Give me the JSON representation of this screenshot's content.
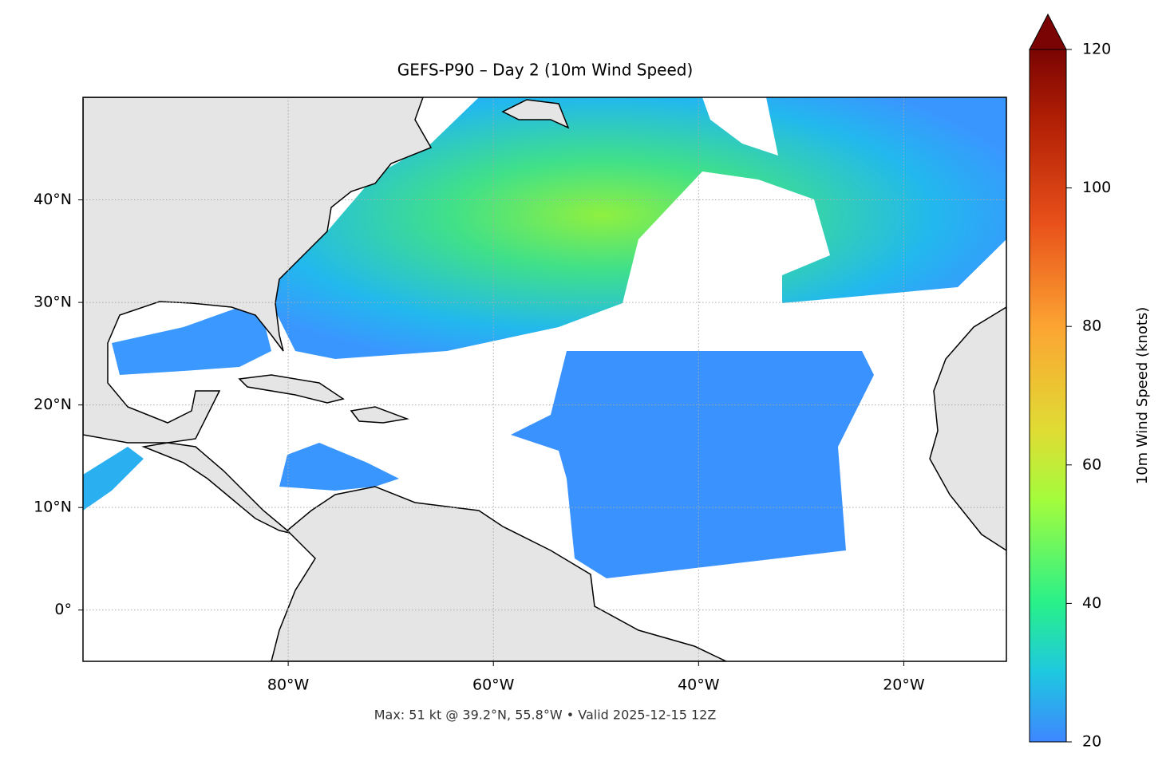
{
  "chart_data": {
    "type": "map",
    "title": "GEFS-P90 – Day 2 (10m Wind Speed)",
    "footer": "Max: 51 kt @ 39.2°N, 55.8°W • Valid 2025-12-15 12Z",
    "xlim": [
      -100,
      -10
    ],
    "ylim": [
      -5,
      50
    ],
    "xticks": [
      {
        "value": -80,
        "label": "80°W"
      },
      {
        "value": -60,
        "label": "60°W"
      },
      {
        "value": -40,
        "label": "40°W"
      },
      {
        "value": -20,
        "label": "20°W"
      }
    ],
    "yticks": [
      {
        "value": 0,
        "label": "0°"
      },
      {
        "value": 10,
        "label": "10°N"
      },
      {
        "value": 20,
        "label": "20°N"
      },
      {
        "value": 30,
        "label": "30°N"
      },
      {
        "value": 40,
        "label": "40°N"
      }
    ],
    "grid": true,
    "colorbar": {
      "label": "10m Wind Speed (knots)",
      "lim": [
        20,
        120
      ],
      "ticks": [
        20,
        40,
        60,
        80,
        100,
        120
      ]
    }
  }
}
